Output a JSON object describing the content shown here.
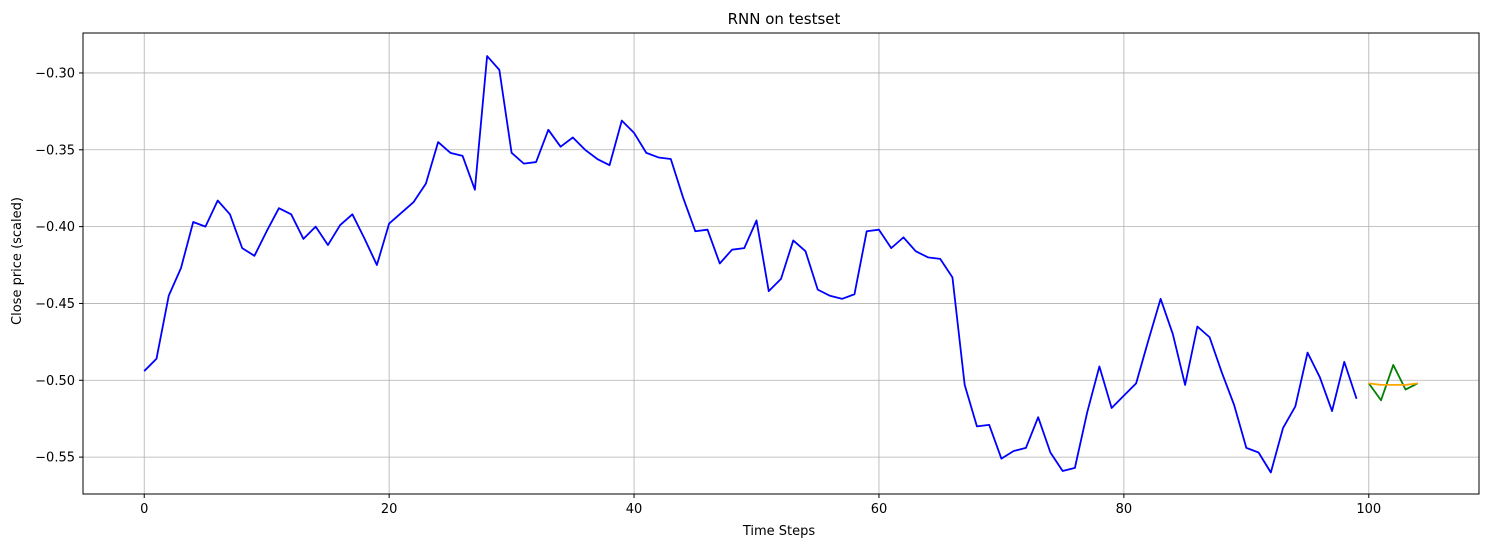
{
  "chart_data": {
    "type": "line",
    "title": "RNN on testset",
    "xlabel": "Time Steps",
    "ylabel": "Close price (scaled)",
    "xlim": [
      -5,
      109
    ],
    "ylim": [
      -0.574,
      -0.274
    ],
    "xticks": [
      0,
      20,
      40,
      60,
      80,
      100
    ],
    "yticks": [
      -0.55,
      -0.5,
      -0.45,
      -0.4,
      -0.35,
      -0.3
    ],
    "ytick_labels": [
      "−0.55",
      "−0.50",
      "−0.45",
      "−0.40",
      "−0.35",
      "−0.30"
    ],
    "grid": true,
    "legend": "none",
    "series": [
      {
        "color": "#0000ff",
        "x_start": 0,
        "values": [
          -0.494,
          -0.486,
          -0.445,
          -0.427,
          -0.397,
          -0.4,
          -0.383,
          -0.392,
          -0.414,
          -0.419,
          -0.403,
          -0.388,
          -0.392,
          -0.408,
          -0.4,
          -0.412,
          -0.399,
          -0.392,
          -0.408,
          -0.425,
          -0.398,
          -0.391,
          -0.384,
          -0.372,
          -0.345,
          -0.352,
          -0.354,
          -0.376,
          -0.289,
          -0.298,
          -0.352,
          -0.359,
          -0.358,
          -0.337,
          -0.348,
          -0.342,
          -0.35,
          -0.356,
          -0.36,
          -0.331,
          -0.339,
          -0.352,
          -0.355,
          -0.356,
          -0.381,
          -0.403,
          -0.402,
          -0.424,
          -0.415,
          -0.414,
          -0.396,
          -0.442,
          -0.434,
          -0.409,
          -0.416,
          -0.441,
          -0.445,
          -0.447,
          -0.444,
          -0.403,
          -0.402,
          -0.414,
          -0.407,
          -0.416,
          -0.42,
          -0.421,
          -0.433,
          -0.503,
          -0.53,
          -0.529,
          -0.551,
          -0.546,
          -0.544,
          -0.524,
          -0.547,
          -0.559,
          -0.557,
          -0.521,
          -0.491,
          -0.518,
          -0.51,
          -0.502,
          -0.474,
          -0.447,
          -0.47,
          -0.503,
          -0.465,
          -0.472,
          -0.495,
          -0.516,
          -0.544,
          -0.547,
          -0.56,
          -0.531,
          -0.517,
          -0.482,
          -0.498,
          -0.52,
          -0.488,
          -0.512
        ]
      },
      {
        "color": "#008000",
        "x_start": 100,
        "values": [
          -0.502,
          -0.513,
          -0.49,
          -0.506,
          -0.502
        ]
      },
      {
        "color": "#ffa500",
        "x_start": 100,
        "values": [
          -0.502,
          -0.503,
          -0.503,
          -0.503,
          -0.502
        ]
      }
    ]
  }
}
